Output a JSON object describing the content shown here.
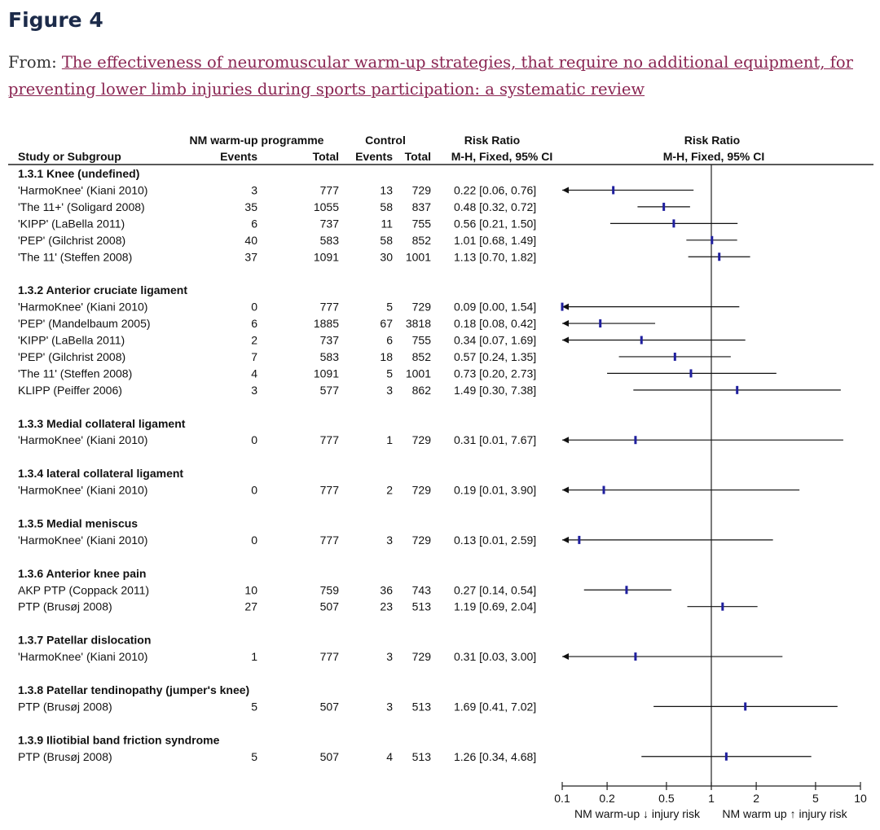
{
  "figure_title": "Figure 4",
  "from_label": "From:",
  "article_link": "The effectiveness of neuromuscular warm-up strategies, that require no additional equipment, for preventing lower limb injuries during sports participation: a systematic review",
  "colors": {
    "title": "#1c2b4a",
    "link": "#8a2552",
    "point": "#1f1f9e"
  },
  "chart_data": {
    "type": "forest",
    "headers": {
      "group1": "NM warm-up programme",
      "group2": "Control",
      "rr_col": "Risk Ratio",
      "rr_method": "M-H, Fixed, 95% CI",
      "study": "Study or Subgroup",
      "events": "Events",
      "total": "Total",
      "plot_title": "Risk Ratio",
      "plot_method": "M-H, Fixed, 95% CI"
    },
    "x_axis": {
      "scale": "log",
      "range": [
        0.1,
        10
      ],
      "ticks": [
        "0.1",
        "0.2",
        "0.5",
        "1",
        "2",
        "5",
        "10"
      ],
      "label_left": "NM warm-up ↓ injury risk",
      "label_right": "NM warm up ↑ injury risk"
    },
    "subgroups": [
      {
        "title": "1.3.1 Knee (undefined)",
        "studies": [
          {
            "name": "'HarmoKnee' (Kiani 2010)",
            "e1": "3",
            "t1": "777",
            "e2": "13",
            "t2": "729",
            "rr_text": "0.22 [0.06, 0.76]",
            "rr": 0.22,
            "lo": 0.06,
            "hi": 0.76
          },
          {
            "name": "'The 11+' (Soligard 2008)",
            "e1": "35",
            "t1": "1055",
            "e2": "58",
            "t2": "837",
            "rr_text": "0.48 [0.32, 0.72]",
            "rr": 0.48,
            "lo": 0.32,
            "hi": 0.72
          },
          {
            "name": "'KIPP' (LaBella 2011)",
            "e1": "6",
            "t1": "737",
            "e2": "11",
            "t2": "755",
            "rr_text": "0.56 [0.21, 1.50]",
            "rr": 0.56,
            "lo": 0.21,
            "hi": 1.5
          },
          {
            "name": "'PEP' (Gilchrist 2008)",
            "e1": "40",
            "t1": "583",
            "e2": "58",
            "t2": "852",
            "rr_text": "1.01 [0.68, 1.49]",
            "rr": 1.01,
            "lo": 0.68,
            "hi": 1.49
          },
          {
            "name": "'The 11' (Steffen 2008)",
            "e1": "37",
            "t1": "1091",
            "e2": "30",
            "t2": "1001",
            "rr_text": "1.13 [0.70, 1.82]",
            "rr": 1.13,
            "lo": 0.7,
            "hi": 1.82
          }
        ]
      },
      {
        "title": "1.3.2 Anterior cruciate ligament",
        "studies": [
          {
            "name": "'HarmoKnee' (Kiani 2010)",
            "e1": "0",
            "t1": "777",
            "e2": "5",
            "t2": "729",
            "rr_text": "0.09 [0.00, 1.54]",
            "rr": 0.09,
            "lo": 0.0,
            "hi": 1.54
          },
          {
            "name": "'PEP' (Mandelbaum 2005)",
            "e1": "6",
            "t1": "1885",
            "e2": "67",
            "t2": "3818",
            "rr_text": "0.18 [0.08, 0.42]",
            "rr": 0.18,
            "lo": 0.08,
            "hi": 0.42
          },
          {
            "name": "'KIPP' (LaBella 2011)",
            "e1": "2",
            "t1": "737",
            "e2": "6",
            "t2": "755",
            "rr_text": "0.34 [0.07, 1.69]",
            "rr": 0.34,
            "lo": 0.07,
            "hi": 1.69
          },
          {
            "name": "'PEP' (Gilchrist 2008)",
            "e1": "7",
            "t1": "583",
            "e2": "18",
            "t2": "852",
            "rr_text": "0.57 [0.24, 1.35]",
            "rr": 0.57,
            "lo": 0.24,
            "hi": 1.35
          },
          {
            "name": "'The 11' (Steffen 2008)",
            "e1": "4",
            "t1": "1091",
            "e2": "5",
            "t2": "1001",
            "rr_text": "0.73 [0.20, 2.73]",
            "rr": 0.73,
            "lo": 0.2,
            "hi": 2.73
          },
          {
            "name": "KLIPP (Peiffer 2006)",
            "e1": "3",
            "t1": "577",
            "e2": "3",
            "t2": "862",
            "rr_text": "1.49 [0.30, 7.38]",
            "rr": 1.49,
            "lo": 0.3,
            "hi": 7.38
          }
        ]
      },
      {
        "title": "1.3.3 Medial collateral ligament",
        "studies": [
          {
            "name": "'HarmoKnee' (Kiani 2010)",
            "e1": "0",
            "t1": "777",
            "e2": "1",
            "t2": "729",
            "rr_text": "0.31 [0.01, 7.67]",
            "rr": 0.31,
            "lo": 0.01,
            "hi": 7.67
          }
        ]
      },
      {
        "title": "1.3.4 lateral collateral ligament",
        "studies": [
          {
            "name": "'HarmoKnee' (Kiani 2010)",
            "e1": "0",
            "t1": "777",
            "e2": "2",
            "t2": "729",
            "rr_text": "0.19 [0.01, 3.90]",
            "rr": 0.19,
            "lo": 0.01,
            "hi": 3.9
          }
        ]
      },
      {
        "title": "1.3.5 Medial meniscus",
        "studies": [
          {
            "name": "'HarmoKnee' (Kiani 2010)",
            "e1": "0",
            "t1": "777",
            "e2": "3",
            "t2": "729",
            "rr_text": "0.13 [0.01, 2.59]",
            "rr": 0.13,
            "lo": 0.01,
            "hi": 2.59
          }
        ]
      },
      {
        "title": "1.3.6 Anterior knee pain",
        "studies": [
          {
            "name": "AKP PTP (Coppack 2011)",
            "e1": "10",
            "t1": "759",
            "e2": "36",
            "t2": "743",
            "rr_text": "0.27 [0.14, 0.54]",
            "rr": 0.27,
            "lo": 0.14,
            "hi": 0.54
          },
          {
            "name": "PTP (Brusøj 2008)",
            "e1": "27",
            "t1": "507",
            "e2": "23",
            "t2": "513",
            "rr_text": "1.19 [0.69, 2.04]",
            "rr": 1.19,
            "lo": 0.69,
            "hi": 2.04
          }
        ]
      },
      {
        "title": "1.3.7 Patellar dislocation",
        "studies": [
          {
            "name": "'HarmoKnee' (Kiani 2010)",
            "e1": "1",
            "t1": "777",
            "e2": "3",
            "t2": "729",
            "rr_text": "0.31 [0.03, 3.00]",
            "rr": 0.31,
            "lo": 0.03,
            "hi": 3.0
          }
        ]
      },
      {
        "title": "1.3.8 Patellar tendinopathy (jumper's knee)",
        "studies": [
          {
            "name": "PTP (Brusøj 2008)",
            "e1": "5",
            "t1": "507",
            "e2": "3",
            "t2": "513",
            "rr_text": "1.69 [0.41, 7.02]",
            "rr": 1.69,
            "lo": 0.41,
            "hi": 7.02
          }
        ]
      },
      {
        "title": "1.3.9 Iliotibial band friction syndrome",
        "studies": [
          {
            "name": "PTP (Brusøj 2008)",
            "e1": "5",
            "t1": "507",
            "e2": "4",
            "t2": "513",
            "rr_text": "1.26 [0.34, 4.68]",
            "rr": 1.26,
            "lo": 0.34,
            "hi": 4.68
          }
        ]
      }
    ]
  }
}
